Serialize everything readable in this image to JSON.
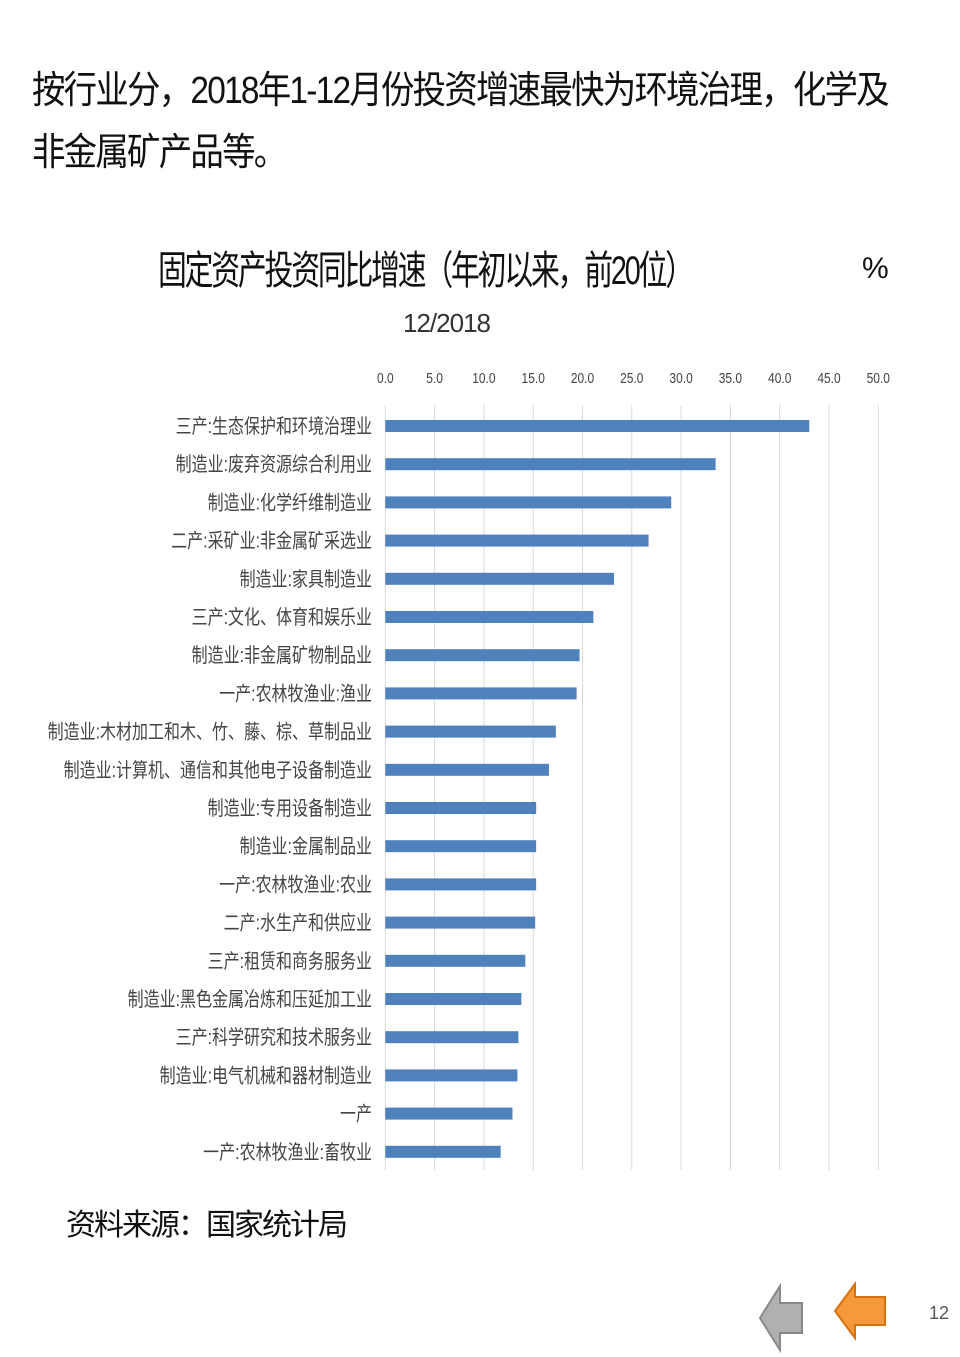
{
  "headline": "按行业分，2018年1-12月份投资增速最快为环境治理，化学及非金属矿产品等。",
  "source": "资料来源：国家统计局",
  "page_number": "12",
  "nav": {
    "prev_icon": "arrow-left-gray-icon",
    "next_icon": "arrow-left-orange-icon"
  },
  "chart_data": {
    "type": "bar",
    "orientation": "horizontal",
    "title": "固定资产投资同比增速（年初以来，前20位）",
    "subtitle": "12/2018",
    "unit": "%",
    "xlim": [
      0,
      50
    ],
    "xticks": [
      "0.0",
      "5.0",
      "10.0",
      "15.0",
      "20.0",
      "25.0",
      "30.0",
      "35.0",
      "40.0",
      "45.0",
      "50.0"
    ],
    "grid": true,
    "bar_color": "#4F81BD",
    "categories": [
      "三产:生态保护和环境治理业",
      "制造业:废弃资源综合利用业",
      "制造业:化学纤维制造业",
      "二产:采矿业:非金属矿采选业",
      "制造业:家具制造业",
      "三产:文化、体育和娱乐业",
      "制造业:非金属矿物制品业",
      "一产:农林牧渔业:渔业",
      "制造业:木材加工和木、竹、藤、棕、草制品业",
      "制造业:计算机、通信和其他电子设备制造业",
      "制造业:专用设备制造业",
      "制造业:金属制品业",
      "一产:农林牧渔业:农业",
      "二产:水生产和供应业",
      "三产:租赁和商务服务业",
      "制造业:黑色金属冶炼和压延加工业",
      "三产:科学研究和技术服务业",
      "制造业:电气机械和器材制造业",
      "一产",
      "一产:农林牧渔业:畜牧业"
    ],
    "values": [
      43.0,
      33.5,
      29.0,
      26.7,
      23.2,
      21.1,
      19.7,
      19.4,
      17.3,
      16.6,
      15.3,
      15.3,
      15.3,
      15.2,
      14.2,
      13.8,
      13.5,
      13.4,
      12.9,
      11.7
    ]
  }
}
